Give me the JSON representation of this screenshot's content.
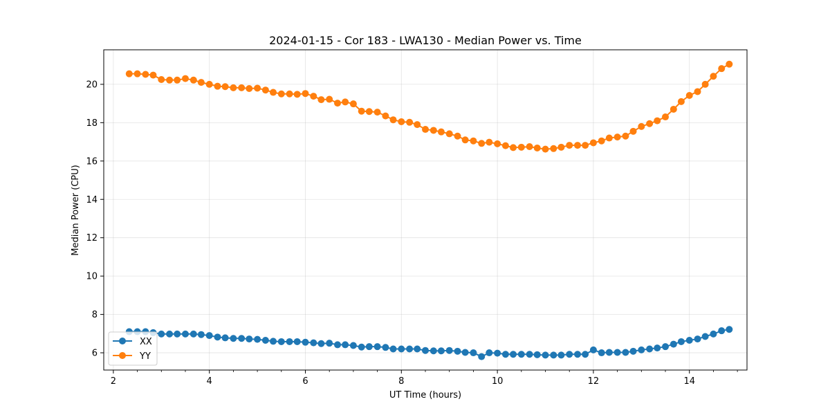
{
  "chart_data": {
    "type": "line",
    "title": "2024-01-15 - Cor 183 - LWA130 - Median Power vs. Time",
    "xlabel": "UT Time (hours)",
    "ylabel": "Median Power (CPU)",
    "xlim": [
      1.8,
      15.2
    ],
    "ylim": [
      5.1,
      21.8
    ],
    "xticks": [
      2,
      4,
      6,
      8,
      10,
      12,
      14
    ],
    "xtick_labels": [
      "2",
      "4",
      "6",
      "8",
      "10",
      "12",
      "14"
    ],
    "yticks": [
      6,
      8,
      10,
      12,
      14,
      16,
      18,
      20
    ],
    "ytick_labels": [
      "6",
      "8",
      "10",
      "12",
      "14",
      "16",
      "18",
      "20"
    ],
    "grid": true,
    "legend_position": "lower-left",
    "series_colors": [
      "#1f77b4",
      "#ff7f0e"
    ],
    "series": [
      {
        "name": "XX",
        "color": "#1f77b4",
        "x": [
          2.33,
          2.5,
          2.67,
          2.83,
          3.0,
          3.17,
          3.33,
          3.5,
          3.67,
          3.83,
          4.0,
          4.17,
          4.33,
          4.5,
          4.67,
          4.83,
          5.0,
          5.17,
          5.33,
          5.5,
          5.67,
          5.83,
          6.0,
          6.17,
          6.33,
          6.5,
          6.67,
          6.83,
          7.0,
          7.17,
          7.33,
          7.5,
          7.67,
          7.83,
          8.0,
          8.17,
          8.33,
          8.5,
          8.67,
          8.83,
          9.0,
          9.17,
          9.33,
          9.5,
          9.67,
          9.83,
          10.0,
          10.17,
          10.33,
          10.5,
          10.67,
          10.83,
          11.0,
          11.17,
          11.33,
          11.5,
          11.67,
          11.83,
          12.0,
          12.17,
          12.33,
          12.5,
          12.67,
          12.83,
          13.0,
          13.17,
          13.33,
          13.5,
          13.67,
          13.83,
          14.0,
          14.17,
          14.33,
          14.5,
          14.67,
          14.83
        ],
        "values": [
          7.1,
          7.1,
          7.1,
          7.05,
          6.98,
          6.98,
          6.98,
          6.98,
          6.98,
          6.95,
          6.9,
          6.82,
          6.78,
          6.75,
          6.75,
          6.72,
          6.7,
          6.65,
          6.6,
          6.58,
          6.58,
          6.58,
          6.55,
          6.52,
          6.48,
          6.5,
          6.42,
          6.42,
          6.38,
          6.3,
          6.32,
          6.32,
          6.28,
          6.2,
          6.2,
          6.2,
          6.2,
          6.12,
          6.1,
          6.1,
          6.12,
          6.08,
          6.02,
          6.0,
          5.8,
          6.0,
          5.98,
          5.92,
          5.92,
          5.92,
          5.92,
          5.9,
          5.88,
          5.88,
          5.88,
          5.92,
          5.92,
          5.92,
          6.15,
          6.0,
          6.02,
          6.02,
          6.02,
          6.08,
          6.15,
          6.2,
          6.25,
          6.32,
          6.45,
          6.58,
          6.65,
          6.72,
          6.85,
          6.98,
          7.15,
          7.22
        ]
      },
      {
        "name": "YY",
        "color": "#ff7f0e",
        "x": [
          2.33,
          2.5,
          2.67,
          2.83,
          3.0,
          3.17,
          3.33,
          3.5,
          3.67,
          3.83,
          4.0,
          4.17,
          4.33,
          4.5,
          4.67,
          4.83,
          5.0,
          5.17,
          5.33,
          5.5,
          5.67,
          5.83,
          6.0,
          6.17,
          6.33,
          6.5,
          6.67,
          6.83,
          7.0,
          7.17,
          7.33,
          7.5,
          7.67,
          7.83,
          8.0,
          8.17,
          8.33,
          8.5,
          8.67,
          8.83,
          9.0,
          9.17,
          9.33,
          9.5,
          9.67,
          9.83,
          10.0,
          10.17,
          10.33,
          10.5,
          10.67,
          10.83,
          11.0,
          11.17,
          11.33,
          11.5,
          11.67,
          11.83,
          12.0,
          12.17,
          12.33,
          12.5,
          12.67,
          12.83,
          13.0,
          13.17,
          13.33,
          13.5,
          13.67,
          13.83,
          14.0,
          14.17,
          14.33,
          14.5,
          14.67,
          14.83
        ],
        "values": [
          20.55,
          20.55,
          20.52,
          20.48,
          20.25,
          20.22,
          20.22,
          20.3,
          20.22,
          20.1,
          20.0,
          19.9,
          19.88,
          19.82,
          19.82,
          19.78,
          19.8,
          19.7,
          19.58,
          19.5,
          19.5,
          19.48,
          19.52,
          19.38,
          19.2,
          19.22,
          19.02,
          19.08,
          18.98,
          18.6,
          18.58,
          18.55,
          18.35,
          18.15,
          18.05,
          18.02,
          17.9,
          17.65,
          17.6,
          17.52,
          17.42,
          17.3,
          17.1,
          17.05,
          16.92,
          16.98,
          16.9,
          16.8,
          16.7,
          16.72,
          16.75,
          16.68,
          16.62,
          16.65,
          16.72,
          16.82,
          16.82,
          16.82,
          16.95,
          17.05,
          17.2,
          17.25,
          17.3,
          17.55,
          17.8,
          17.95,
          18.1,
          18.3,
          18.7,
          19.1,
          19.42,
          19.62,
          20.0,
          20.42,
          20.82,
          21.05
        ]
      }
    ]
  }
}
